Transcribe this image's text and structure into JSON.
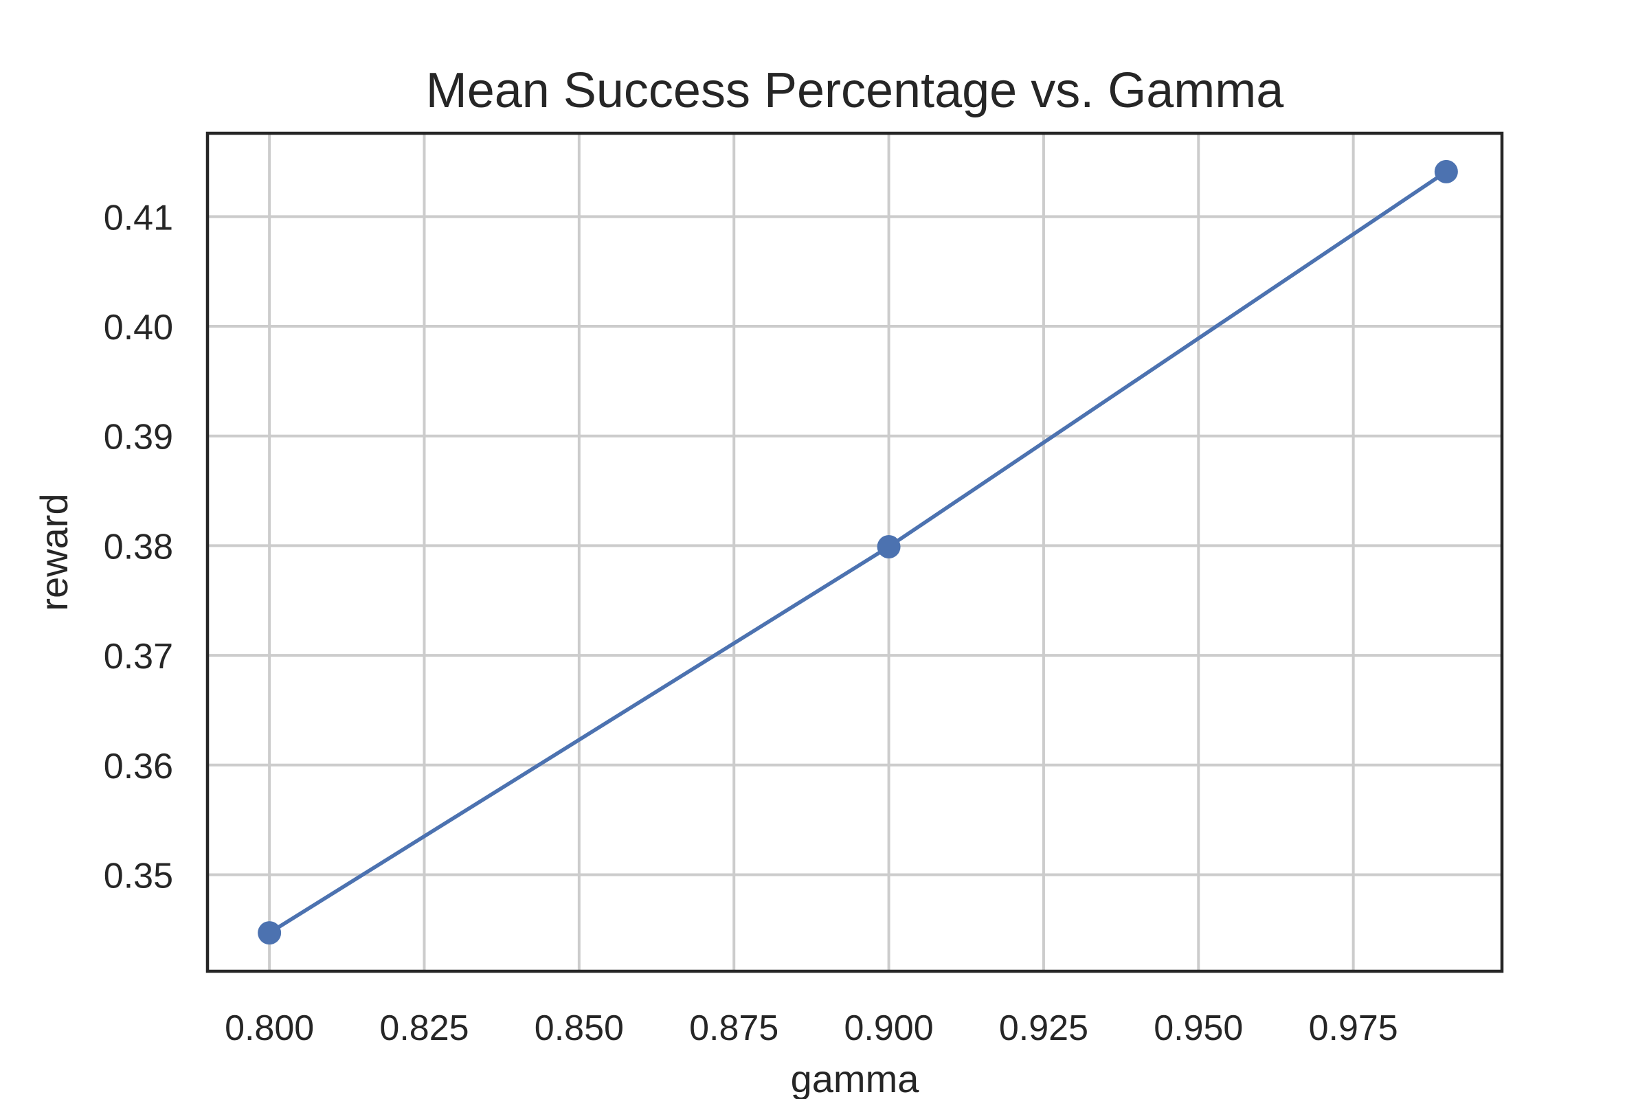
{
  "chart_data": {
    "type": "line",
    "title": "Mean Success Percentage vs. Gamma",
    "xlabel": "gamma",
    "ylabel": "reward",
    "xlim": [
      0.79,
      0.999
    ],
    "ylim": [
      0.3412,
      0.4176
    ],
    "x_ticks": [
      0.8,
      0.825,
      0.85,
      0.875,
      0.9,
      0.925,
      0.95,
      0.975
    ],
    "x_tick_labels": [
      "0.800",
      "0.825",
      "0.850",
      "0.875",
      "0.900",
      "0.925",
      "0.950",
      "0.975"
    ],
    "y_ticks": [
      0.35,
      0.36,
      0.37,
      0.38,
      0.39,
      0.4,
      0.41
    ],
    "y_tick_labels": [
      "0.35",
      "0.36",
      "0.37",
      "0.38",
      "0.39",
      "0.40",
      "0.41"
    ],
    "grid": true,
    "series": [
      {
        "x": [
          0.8,
          0.9,
          0.99
        ],
        "y": [
          0.3447,
          0.3799,
          0.4141
        ],
        "color": "#4c72b0",
        "marker": "circle"
      }
    ]
  }
}
